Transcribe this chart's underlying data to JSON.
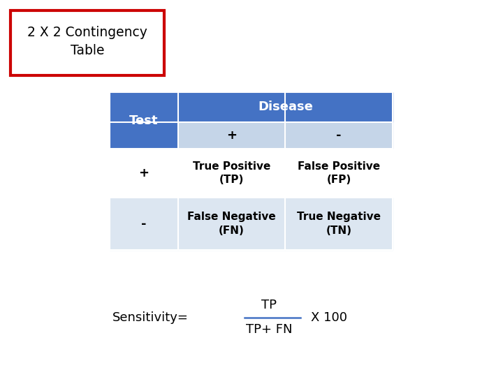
{
  "title_line1": "2 X 2 Contingency",
  "title_line2": "Table",
  "title_box_color": "#cc0000",
  "title_bg_color": "#ffffff",
  "title_text_color": "#000000",
  "header_bg_color": "#4472c4",
  "header_text_color": "#ffffff",
  "subheader_bg_color": "#c5d5e8",
  "row_bg_color_1": "#ffffff",
  "row_bg_color_2": "#dce6f1",
  "cell_text_color": "#000000",
  "sensitivity_label": "Sensitivity=",
  "sensitivity_numerator": "TP",
  "sensitivity_denominator": "TP+ FN",
  "sensitivity_multiplier": "X 100",
  "row1_label": "Test",
  "row2_label": "Disease",
  "col_plus": "+",
  "col_minus": "-",
  "cell_tp": "True Positive\n(TP)",
  "cell_fp": "False Positive\n(FP)",
  "cell_fn": "False Negative\n(FN)",
  "cell_tn": "True Negative\n(TN)",
  "test_plus": "+",
  "test_minus": "-"
}
